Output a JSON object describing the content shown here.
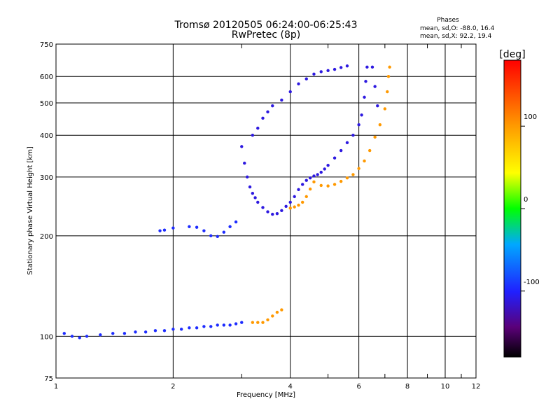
{
  "chart_data": {
    "type": "scatter",
    "title": "Tromsø 20120505 06:24:00-06:25:43",
    "subtitle": "RwPretec (8p)",
    "phase_stats": {
      "heading": "Phases",
      "line_o": "mean, sd,O:  -88.0, 16.4",
      "line_x": "mean, sd,X:  92.2, 19.4"
    },
    "xlabel": "Frequency [MHz]",
    "ylabel": "Stationary phase Virtual Height [km]",
    "x_scale": "log",
    "y_scale": "log",
    "xlim": [
      1,
      12
    ],
    "ylim": [
      75,
      750
    ],
    "x_ticks": [
      1,
      2,
      4,
      6,
      8,
      10,
      12
    ],
    "x_tick_labels": [
      "1",
      "2",
      "4",
      "6",
      "8",
      "10",
      "12"
    ],
    "x_minor_ticks": [
      3,
      5,
      7,
      9,
      11
    ],
    "y_ticks": [
      75,
      100,
      200,
      300,
      400,
      500,
      600,
      750
    ],
    "y_tick_labels": [
      "75",
      "100",
      "200",
      "300",
      "400",
      "500",
      "600",
      "750"
    ],
    "grid": true,
    "colorbar": {
      "label": "[deg]",
      "min": -180,
      "max": 180,
      "ticks": [
        100,
        0,
        -100
      ],
      "tick_labels": [
        "100",
        "0",
        "-100"
      ],
      "colormap": "rainbow"
    },
    "series": [
      {
        "phase_deg": -95,
        "points": [
          [
            1.05,
            102
          ],
          [
            1.1,
            100
          ],
          [
            1.15,
            99
          ],
          [
            1.2,
            100
          ],
          [
            1.3,
            101
          ],
          [
            1.4,
            102
          ],
          [
            1.5,
            102
          ],
          [
            1.6,
            103
          ],
          [
            1.7,
            103
          ],
          [
            1.8,
            104
          ],
          [
            1.9,
            104
          ],
          [
            2.0,
            105
          ],
          [
            2.1,
            105
          ],
          [
            2.2,
            106
          ],
          [
            2.3,
            106
          ],
          [
            2.4,
            107
          ],
          [
            2.5,
            107
          ],
          [
            2.6,
            108
          ],
          [
            2.7,
            108
          ],
          [
            2.8,
            108
          ],
          [
            2.9,
            109
          ],
          [
            3.0,
            110
          ],
          [
            1.85,
            207
          ],
          [
            1.9,
            208
          ],
          [
            2.0,
            211
          ],
          [
            2.2,
            213
          ],
          [
            2.3,
            212
          ],
          [
            2.4,
            207
          ],
          [
            2.5,
            200
          ],
          [
            2.6,
            199
          ],
          [
            2.7,
            205
          ],
          [
            2.8,
            213
          ],
          [
            2.9,
            220
          ]
        ]
      },
      {
        "phase_deg": -110,
        "points": [
          [
            3.0,
            370
          ],
          [
            3.05,
            330
          ],
          [
            3.1,
            300
          ],
          [
            3.15,
            280
          ],
          [
            3.2,
            268
          ],
          [
            3.25,
            260
          ],
          [
            3.3,
            252
          ],
          [
            3.4,
            243
          ],
          [
            3.5,
            236
          ],
          [
            3.6,
            232
          ],
          [
            3.7,
            233
          ],
          [
            3.8,
            238
          ],
          [
            3.9,
            245
          ],
          [
            4.0,
            252
          ],
          [
            4.1,
            262
          ],
          [
            4.2,
            275
          ],
          [
            4.3,
            285
          ],
          [
            4.4,
            293
          ],
          [
            4.5,
            298
          ],
          [
            4.6,
            302
          ],
          [
            4.7,
            305
          ],
          [
            4.8,
            310
          ],
          [
            4.9,
            317
          ],
          [
            5.0,
            325
          ],
          [
            5.2,
            342
          ],
          [
            5.4,
            360
          ],
          [
            5.6,
            380
          ],
          [
            5.8,
            400
          ],
          [
            6.0,
            430
          ],
          [
            3.2,
            400
          ],
          [
            3.3,
            420
          ],
          [
            3.4,
            450
          ],
          [
            3.5,
            470
          ],
          [
            3.6,
            490
          ],
          [
            3.8,
            510
          ],
          [
            4.0,
            540
          ],
          [
            4.2,
            570
          ],
          [
            4.4,
            590
          ],
          [
            4.6,
            610
          ],
          [
            4.8,
            620
          ],
          [
            5.0,
            625
          ],
          [
            5.2,
            630
          ],
          [
            5.4,
            638
          ],
          [
            5.6,
            645
          ],
          [
            6.1,
            460
          ],
          [
            6.2,
            520
          ],
          [
            6.25,
            580
          ],
          [
            6.3,
            640
          ],
          [
            6.5,
            640
          ],
          [
            6.6,
            560
          ],
          [
            6.7,
            490
          ]
        ]
      },
      {
        "phase_deg": 100,
        "points": [
          [
            3.2,
            110
          ],
          [
            3.3,
            110
          ],
          [
            3.4,
            110
          ],
          [
            3.5,
            112
          ],
          [
            3.6,
            115
          ],
          [
            3.7,
            118
          ],
          [
            3.8,
            120
          ],
          [
            4.0,
            242
          ],
          [
            4.1,
            244
          ],
          [
            4.2,
            247
          ],
          [
            4.3,
            252
          ],
          [
            4.4,
            262
          ],
          [
            4.5,
            276
          ],
          [
            4.6,
            290
          ],
          [
            4.8,
            283
          ],
          [
            5.0,
            282
          ],
          [
            5.2,
            285
          ],
          [
            5.4,
            291
          ],
          [
            5.6,
            298
          ],
          [
            5.8,
            305
          ],
          [
            6.0,
            318
          ],
          [
            6.2,
            335
          ],
          [
            6.4,
            360
          ],
          [
            6.6,
            395
          ],
          [
            6.8,
            430
          ],
          [
            7.0,
            480
          ],
          [
            7.1,
            540
          ],
          [
            7.15,
            600
          ],
          [
            7.2,
            640
          ]
        ]
      }
    ]
  }
}
